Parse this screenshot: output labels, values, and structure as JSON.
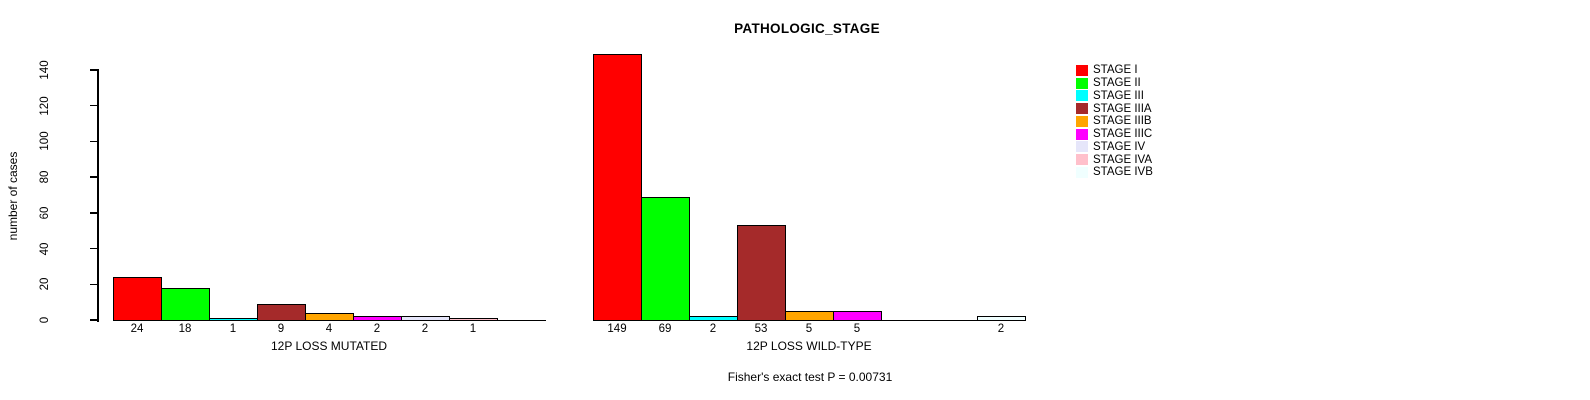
{
  "chart_data": {
    "type": "bar",
    "title": "PATHOLOGIC_STAGE",
    "xlabel": "",
    "ylabel": "number of cases",
    "ylim": [
      0,
      140
    ],
    "yticks": [
      0,
      20,
      40,
      60,
      80,
      100,
      120,
      140
    ],
    "grid": false,
    "legend_position": "right",
    "categories": [
      "STAGE I",
      "STAGE II",
      "STAGE III",
      "STAGE IIIA",
      "STAGE IIIB",
      "STAGE IIIC",
      "STAGE IV",
      "STAGE IVA",
      "STAGE IVB"
    ],
    "colors": [
      "#FF0000",
      "#00FF00",
      "#00FFFF",
      "#A52A2A",
      "#FFA500",
      "#FF00FF",
      "#E6E6FA",
      "#FFC0CB",
      "#F0FFFF"
    ],
    "series": [
      {
        "name": "12P LOSS MUTATED",
        "values": [
          24,
          18,
          1,
          9,
          4,
          2,
          2,
          1,
          0
        ]
      },
      {
        "name": "12P LOSS WILD-TYPE",
        "values": [
          149,
          69,
          2,
          53,
          5,
          5,
          0,
          0,
          2
        ]
      }
    ],
    "annotation": "Fisher's exact test P = 0.00731"
  }
}
